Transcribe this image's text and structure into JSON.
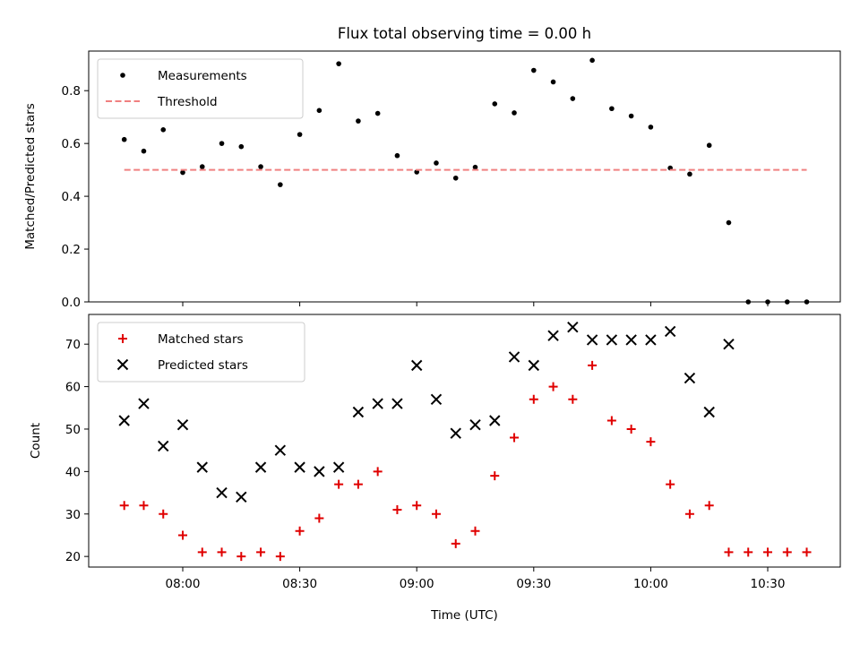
{
  "chart_data": [
    {
      "type": "scatter",
      "title": "Flux total observing time = 0.00 h",
      "xlabel": "",
      "ylabel": "Matched/Predicted stars",
      "ylim": [
        0,
        0.95
      ],
      "yticks": [
        "0.0",
        "0.2",
        "0.4",
        "0.6",
        "0.8"
      ],
      "ytick_values": [
        0,
        0.2,
        0.4,
        0.6,
        0.8
      ],
      "legend_location": "upper-left",
      "series": [
        {
          "name": "Measurements",
          "marker": "dot",
          "color": "#000000",
          "x": [
            "07:45",
            "07:50",
            "07:55",
            "08:00",
            "08:05",
            "08:10",
            "08:15",
            "08:20",
            "08:25",
            "08:30",
            "08:35",
            "08:40",
            "08:45",
            "08:50",
            "08:55",
            "09:00",
            "09:05",
            "09:10",
            "09:15",
            "09:20",
            "09:25",
            "09:30",
            "09:35",
            "09:40",
            "09:45",
            "09:50",
            "09:55",
            "10:00",
            "10:05",
            "10:10",
            "10:15",
            "10:20",
            "10:25",
            "10:30",
            "10:35",
            "10:40"
          ],
          "y": [
            0.615,
            0.571,
            0.652,
            0.49,
            0.512,
            0.6,
            0.588,
            0.512,
            0.444,
            0.634,
            0.725,
            0.902,
            0.685,
            0.714,
            0.554,
            0.492,
            0.526,
            0.469,
            0.51,
            0.75,
            0.716,
            0.877,
            0.833,
            0.77,
            0.915,
            0.732,
            0.704,
            0.662,
            0.507,
            0.484,
            0.593,
            0.3,
            0.0,
            0.0,
            0.0,
            0.0
          ]
        },
        {
          "name": "Threshold",
          "marker": "dashed-line",
          "color": "#f08080",
          "x": [
            "07:45",
            "10:40"
          ],
          "y": [
            0.5,
            0.5
          ]
        }
      ]
    },
    {
      "type": "scatter",
      "title": "",
      "xlabel": "Time (UTC)",
      "ylabel": "Count",
      "ylim": [
        17.5,
        77
      ],
      "yticks": [
        "20",
        "30",
        "40",
        "50",
        "60",
        "70"
      ],
      "ytick_values": [
        20,
        30,
        40,
        50,
        60,
        70
      ],
      "xticks": [
        "08:00",
        "08:30",
        "09:00",
        "09:30",
        "10:00",
        "10:30"
      ],
      "legend_location": "upper-left",
      "series": [
        {
          "name": "Matched stars",
          "marker": "plus",
          "color": "#e00000",
          "x": [
            "07:45",
            "07:50",
            "07:55",
            "08:00",
            "08:05",
            "08:10",
            "08:15",
            "08:20",
            "08:25",
            "08:30",
            "08:35",
            "08:40",
            "08:45",
            "08:50",
            "08:55",
            "09:00",
            "09:05",
            "09:10",
            "09:15",
            "09:20",
            "09:25",
            "09:30",
            "09:35",
            "09:40",
            "09:45",
            "09:50",
            "09:55",
            "10:00",
            "10:05",
            "10:10",
            "10:15",
            "10:20",
            "10:25",
            "10:30",
            "10:35",
            "10:40"
          ],
          "y": [
            32,
            32,
            30,
            25,
            21,
            21,
            20,
            21,
            20,
            26,
            29,
            37,
            37,
            40,
            31,
            32,
            30,
            23,
            26,
            39,
            48,
            57,
            60,
            57,
            65,
            52,
            50,
            47,
            37,
            30,
            32,
            21,
            21,
            21,
            21,
            21
          ]
        },
        {
          "name": "Predicted stars",
          "marker": "x",
          "color": "#000000",
          "x": [
            "07:45",
            "07:50",
            "07:55",
            "08:00",
            "08:05",
            "08:10",
            "08:15",
            "08:20",
            "08:25",
            "08:30",
            "08:35",
            "08:40",
            "08:45",
            "08:50",
            "08:55",
            "09:00",
            "09:05",
            "09:10",
            "09:15",
            "09:20",
            "09:25",
            "09:30",
            "09:35",
            "09:40",
            "09:45",
            "09:50",
            "09:55",
            "10:00",
            "10:05",
            "10:10",
            "10:15",
            "10:20"
          ],
          "y": [
            52,
            56,
            46,
            51,
            41,
            35,
            34,
            41,
            45,
            41,
            40,
            41,
            54,
            56,
            56,
            65,
            57,
            49,
            51,
            52,
            67,
            65,
            72,
            74,
            71,
            71,
            71,
            71,
            73,
            62,
            54,
            70
          ]
        }
      ]
    }
  ]
}
